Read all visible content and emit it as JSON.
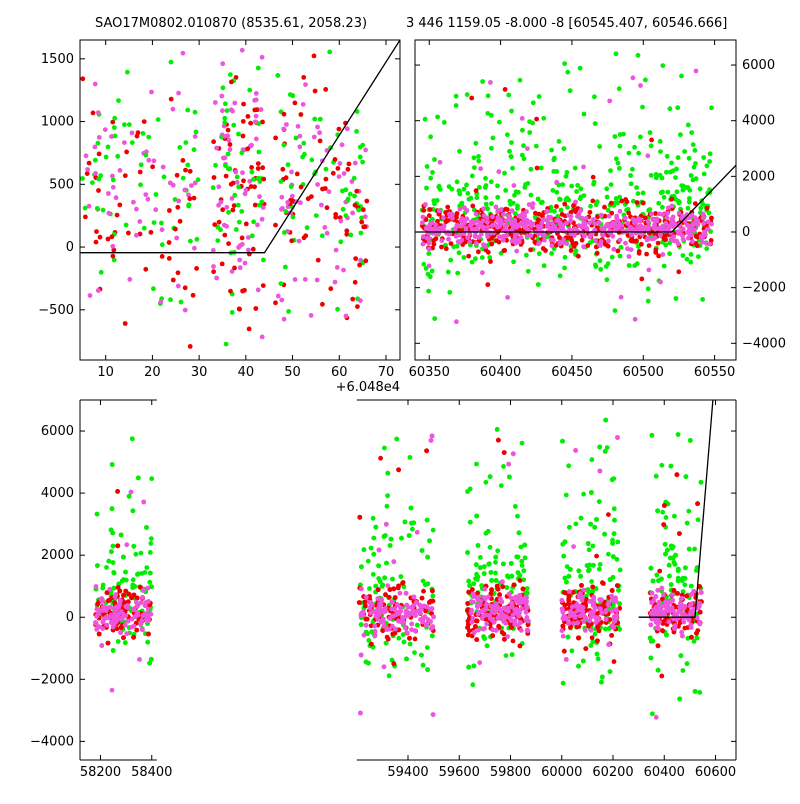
{
  "titles": {
    "left": "SAO17M0802.010870 (8535.61, 2058.23)",
    "right": "3 446 1159.05 -8.000 -8 [60545.407, 60546.666]"
  },
  "colors": {
    "green": "#00ee00",
    "red": "#ee0000",
    "magenta": "#ee55dd",
    "line": "#000000",
    "axis": "#000000"
  },
  "chart_data": [
    {
      "type": "scatter",
      "panel": "top-left zoom",
      "x_offset_label": "+6.048e4",
      "xlim": [
        4.5,
        73
      ],
      "ylim": [
        -900,
        1650
      ],
      "x_ticks": [
        10,
        20,
        30,
        40,
        50,
        60,
        70
      ],
      "y_ticks": [
        -500,
        0,
        500,
        1000,
        1500
      ],
      "y_tick_labels": [
        "−500",
        "0",
        "500",
        "1000",
        "1500"
      ],
      "x_clusters": [
        [
          5,
          30
        ],
        [
          33,
          44
        ],
        [
          46,
          66
        ]
      ],
      "y_spread": {
        "center": 450,
        "sd": 420
      },
      "series_colors": [
        "green",
        "red",
        "magenta"
      ],
      "model_line": [
        [
          4.5,
          -45
        ],
        [
          44,
          -45
        ],
        [
          73,
          1650
        ]
      ]
    },
    {
      "type": "scatter",
      "panel": "top-right",
      "xlim": [
        60340,
        60565
      ],
      "ylim": [
        -4600,
        6900
      ],
      "x_ticks": [
        60350,
        60400,
        60450,
        60500,
        60550
      ],
      "y_ticks": [
        -4000,
        -2000,
        0,
        2000,
        4000,
        6000
      ],
      "y_tick_labels": [
        "−4000",
        "−2000",
        "0",
        "2000",
        "4000",
        "6000"
      ],
      "x_range_points": [
        60345,
        60548
      ],
      "y_spread": {
        "center": 150,
        "sd": 500
      },
      "series_colors": [
        "green",
        "red",
        "magenta"
      ],
      "model_line": [
        [
          60340,
          0
        ],
        [
          60520,
          0
        ],
        [
          60565,
          2400
        ]
      ]
    },
    {
      "type": "scatter",
      "panel": "bottom full",
      "xlim": [
        58120,
        60680
      ],
      "ylim": [
        -4600,
        7000
      ],
      "x_ticks": [
        58200,
        58400,
        59400,
        59600,
        59800,
        60000,
        60200,
        60400,
        60600
      ],
      "y_ticks": [
        -4000,
        -2000,
        0,
        2000,
        4000,
        6000
      ],
      "y_tick_labels": [
        "−4000",
        "−2000",
        "0",
        "2000",
        "4000",
        "6000"
      ],
      "seasons": [
        [
          58180,
          58400
        ],
        [
          59210,
          59500
        ],
        [
          59630,
          59870
        ],
        [
          60000,
          60230
        ],
        [
          60345,
          60545
        ]
      ],
      "axis_break": [
        58420,
        59200
      ],
      "y_spread": {
        "center": 150,
        "sd": 500
      },
      "series_colors": [
        "green",
        "red",
        "magenta"
      ],
      "model_line": [
        [
          60300,
          0
        ],
        [
          60520,
          0
        ],
        [
          60590,
          7000
        ]
      ]
    }
  ]
}
